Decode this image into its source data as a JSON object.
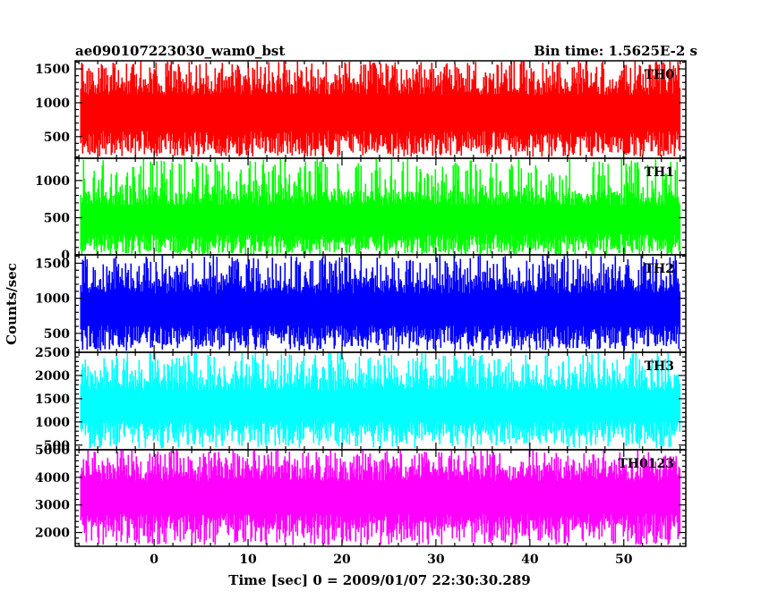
{
  "header": {
    "left_title": "ae090107223030_wam0_bst",
    "right_title": "Bin time: 1.5625E-2 s"
  },
  "chart_data": {
    "type": "line",
    "xlabel": "Time [sec] 0 = 2009/01/07 22:30:30.289",
    "ylabel": "Counts/sec",
    "xlim": [
      -8.4,
      56.6
    ],
    "x_ticks": [
      0,
      10,
      20,
      30,
      40,
      50
    ],
    "x_tick_labels": [
      "0",
      "10",
      "20",
      "30",
      "40",
      "50"
    ],
    "data_x_range": [
      -7.8,
      56.0
    ],
    "panels": [
      {
        "label": "TH0",
        "color": "#ff0000",
        "ylim": [
          180,
          1620
        ],
        "y_ticks": [
          500,
          1000,
          1500
        ],
        "y_tick_labels": [
          "500",
          "1000",
          "1500"
        ],
        "summary": {
          "typical_min": 320,
          "typical_max": 1380,
          "min": 200,
          "max": 1620
        }
      },
      {
        "label": "TH1",
        "color": "#00ff00",
        "ylim": [
          0,
          1300
        ],
        "y_ticks": [
          0,
          500,
          1000
        ],
        "y_tick_labels": [
          "0",
          "500",
          "1000"
        ],
        "summary": {
          "typical_min": 90,
          "typical_max": 860,
          "min": 0,
          "max": 1300
        }
      },
      {
        "label": "TH2",
        "color": "#0000ff",
        "ylim": [
          230,
          1620
        ],
        "y_ticks": [
          500,
          1000,
          1500
        ],
        "y_tick_labels": [
          "500",
          "1000",
          "1500"
        ],
        "summary": {
          "typical_min": 390,
          "typical_max": 1290,
          "min": 250,
          "max": 1620
        }
      },
      {
        "label": "TH3",
        "color": "#00ffff",
        "ylim": [
          400,
          2500
        ],
        "y_ticks": [
          500,
          1000,
          1500,
          2000,
          2500
        ],
        "y_tick_labels": [
          "500",
          "1000",
          "1500",
          "2000",
          "2500"
        ],
        "summary": {
          "typical_min": 700,
          "typical_max": 2000,
          "min": 430,
          "max": 2500
        }
      },
      {
        "label": "TH0123",
        "color": "#ff00ff",
        "ylim": [
          1500,
          5000
        ],
        "y_ticks": [
          2000,
          3000,
          4000,
          5000
        ],
        "y_tick_labels": [
          "2000",
          "3000",
          "4000",
          "5000"
        ],
        "summary": {
          "typical_min": 2100,
          "typical_max": 4450,
          "min": 1550,
          "max": 5000
        }
      }
    ]
  }
}
